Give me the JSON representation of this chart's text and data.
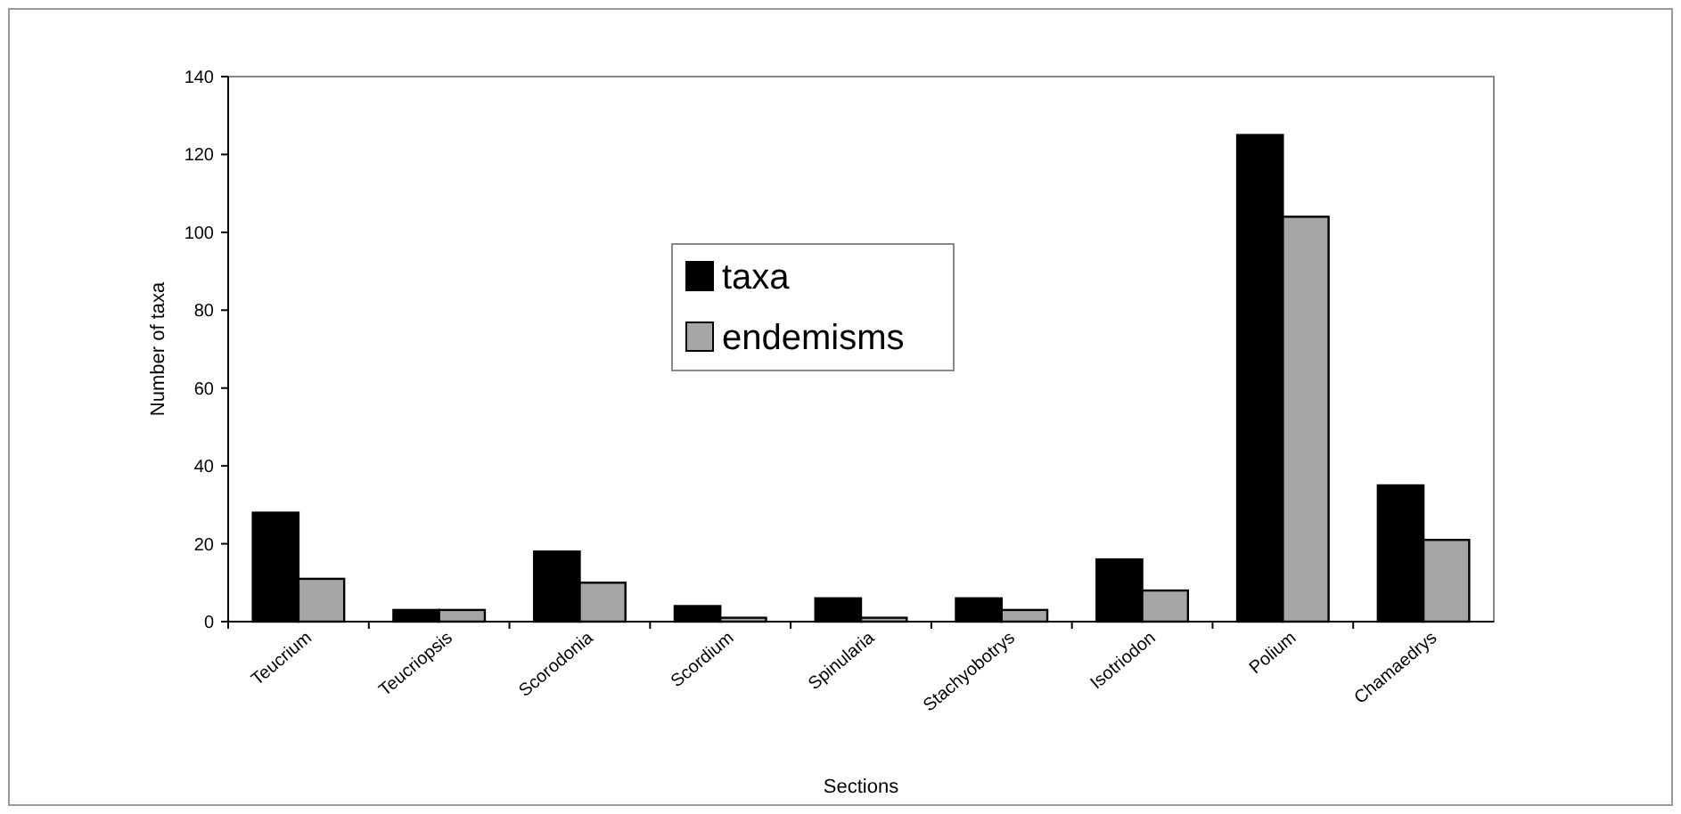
{
  "chart_data": {
    "type": "bar",
    "xlabel": "Sections",
    "ylabel": "Number of taxa",
    "categories": [
      "Teucrium",
      "Teucriopsis",
      "Scorodonia",
      "Scordium",
      "Spinularia",
      "Stachyobotrys",
      "Isotriodon",
      "Polium",
      "Chamaedrys"
    ],
    "series": [
      {
        "name": "taxa",
        "color": "#000000",
        "values": [
          28,
          3,
          18,
          4,
          6,
          6,
          16,
          125,
          35
        ]
      },
      {
        "name": "endemisms",
        "color": "#a6a6a6",
        "values": [
          11,
          3,
          10,
          1,
          1,
          3,
          8,
          104,
          21
        ]
      }
    ],
    "ylim": [
      0,
      140
    ],
    "yticks": [
      0,
      20,
      40,
      60,
      80,
      100,
      120,
      140
    ],
    "grid": false,
    "legend": "top"
  }
}
